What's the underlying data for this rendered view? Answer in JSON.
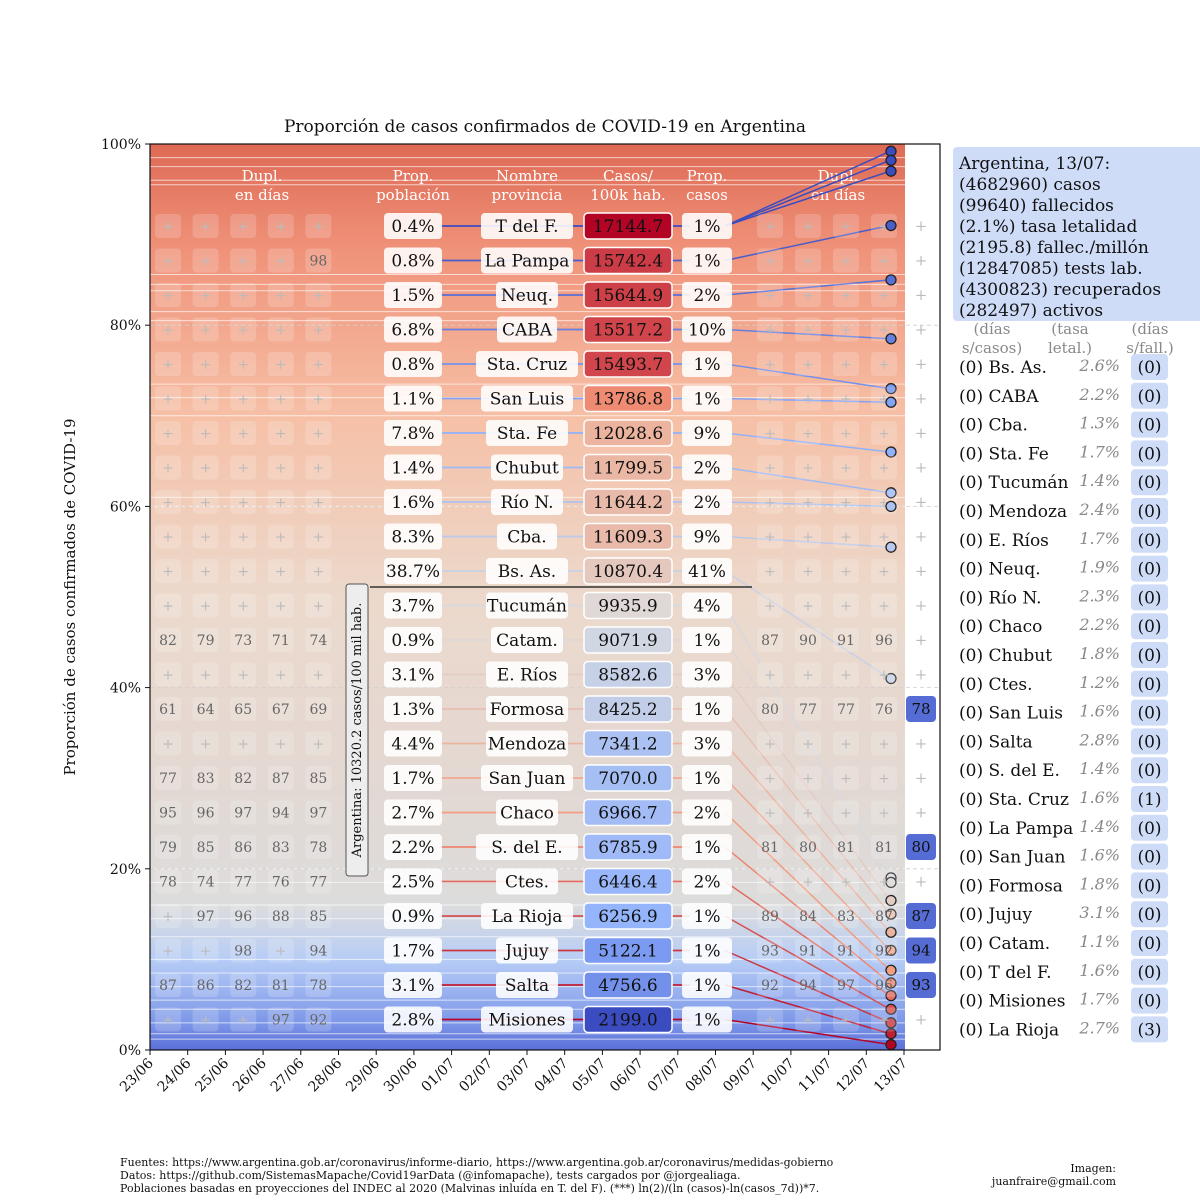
{
  "chart_data": {
    "type": "area",
    "title": "Proporción de casos confirmados de COVID-19 en Argentina",
    "ylabel": "Proporción de casos confirmados de COVID-19",
    "yticks": [
      "0%",
      "20%",
      "40%",
      "60%",
      "80%",
      "100%"
    ],
    "x": [
      "23/06",
      "24/06",
      "25/06",
      "26/06",
      "27/06",
      "28/06",
      "29/06",
      "30/06",
      "01/07",
      "02/07",
      "03/07",
      "04/07",
      "05/07",
      "06/07",
      "07/07",
      "08/07",
      "09/07",
      "10/07",
      "11/07",
      "12/07",
      "13/07"
    ],
    "headers": {
      "dupl_left": [
        "Dupl.",
        "en días"
      ],
      "prop_pop": [
        "Prop.",
        "población"
      ],
      "name": [
        "Nombre",
        "provincia"
      ],
      "cases": [
        "Casos/",
        "100k hab."
      ],
      "prop_cases": [
        "Prop.",
        "casos"
      ],
      "dupl_right": [
        "Dupl.",
        "en días"
      ]
    },
    "rows": [
      {
        "name": "T del F.",
        "pop": "0.4%",
        "cases": "17144.7",
        "prop": "1%",
        "left": [
          "+",
          "+",
          "+",
          "+",
          "+"
        ],
        "right": [
          "+",
          "+",
          "+",
          "+"
        ],
        "last": "+",
        "end": 0.97
      },
      {
        "name": "La Pampa",
        "pop": "0.8%",
        "cases": "15742.4",
        "prop": "1%",
        "left": [
          "+",
          "+",
          "+",
          "+",
          "98"
        ],
        "right": [
          "+",
          "+",
          "+",
          "+"
        ],
        "last": "+",
        "end": 0.91
      },
      {
        "name": "Neuq.",
        "pop": "1.5%",
        "cases": "15644.9",
        "prop": "2%",
        "left": [
          "+",
          "+",
          "+",
          "+",
          "+"
        ],
        "right": [
          "+",
          "+",
          "+",
          "+"
        ],
        "last": "+",
        "end": 0.85
      },
      {
        "name": "CABA",
        "pop": "6.8%",
        "cases": "15517.2",
        "prop": "10%",
        "left": [
          "+",
          "+",
          "+",
          "+",
          "+"
        ],
        "right": [
          "+",
          "+",
          "+",
          "+"
        ],
        "last": "+",
        "end": 0.785
      },
      {
        "name": "Sta. Cruz",
        "pop": "0.8%",
        "cases": "15493.7",
        "prop": "1%",
        "left": [
          "+",
          "+",
          "+",
          "+",
          "+"
        ],
        "right": [
          "+",
          "+",
          "+",
          "+"
        ],
        "last": "+",
        "end": 0.73
      },
      {
        "name": "San Luis",
        "pop": "1.1%",
        "cases": "13786.8",
        "prop": "1%",
        "left": [
          "+",
          "+",
          "+",
          "+",
          "+"
        ],
        "right": [
          "+",
          "+",
          "+",
          "+"
        ],
        "last": "+",
        "end": 0.715
      },
      {
        "name": "Sta. Fe",
        "pop": "7.8%",
        "cases": "12028.6",
        "prop": "9%",
        "left": [
          "+",
          "+",
          "+",
          "+",
          "+"
        ],
        "right": [
          "+",
          "+",
          "+",
          "+"
        ],
        "last": "+",
        "end": 0.66
      },
      {
        "name": "Chubut",
        "pop": "1.4%",
        "cases": "11799.5",
        "prop": "2%",
        "left": [
          "+",
          "+",
          "+",
          "+",
          "+"
        ],
        "right": [
          "+",
          "+",
          "+",
          "+"
        ],
        "last": "+",
        "end": 0.615
      },
      {
        "name": "Río N.",
        "pop": "1.6%",
        "cases": "11644.2",
        "prop": "2%",
        "left": [
          "+",
          "+",
          "+",
          "+",
          "+"
        ],
        "right": [
          "+",
          "+",
          "+",
          "+"
        ],
        "last": "+",
        "end": 0.6
      },
      {
        "name": "Cba.",
        "pop": "8.3%",
        "cases": "11609.3",
        "prop": "9%",
        "left": [
          "+",
          "+",
          "+",
          "+",
          "+"
        ],
        "right": [
          "+",
          "+",
          "+",
          "+"
        ],
        "last": "+",
        "end": 0.555
      },
      {
        "name": "Bs. As.",
        "pop": "38.7%",
        "cases": "10870.4",
        "prop": "41%",
        "left": [
          "+",
          "+",
          "+",
          "+",
          "+"
        ],
        "right": [
          "+",
          "+",
          "+",
          "+"
        ],
        "last": "+",
        "end": 0.41
      },
      {
        "name": "Tucumán",
        "pop": "3.7%",
        "cases": "9935.9",
        "prop": "4%",
        "left": [
          "+",
          "+",
          "+",
          "+",
          "+"
        ],
        "right": [
          "+",
          "+",
          "+",
          "+"
        ],
        "last": "+",
        "end": 0.19
      },
      {
        "name": "Catam.",
        "pop": "0.9%",
        "cases": "9071.9",
        "prop": "1%",
        "left": [
          "82",
          "79",
          "73",
          "71",
          "74"
        ],
        "right": [
          "87",
          "90",
          "91",
          "96"
        ],
        "last": "+",
        "end": 0.185
      },
      {
        "name": "E. Ríos",
        "pop": "3.1%",
        "cases": "8582.6",
        "prop": "3%",
        "left": [
          "+",
          "+",
          "+",
          "+",
          "+"
        ],
        "right": [
          "+",
          "+",
          "+",
          "+"
        ],
        "last": "+",
        "end": 0.165
      },
      {
        "name": "Formosa",
        "pop": "1.3%",
        "cases": "8425.2",
        "prop": "1%",
        "left": [
          "61",
          "64",
          "65",
          "67",
          "69"
        ],
        "right": [
          "80",
          "77",
          "77",
          "76"
        ],
        "last": "78",
        "end": 0.15
      },
      {
        "name": "Mendoza",
        "pop": "4.4%",
        "cases": "7341.2",
        "prop": "3%",
        "left": [
          "+",
          "+",
          "+",
          "+",
          "+"
        ],
        "right": [
          "+",
          "+",
          "+",
          "+"
        ],
        "last": "+",
        "end": 0.13
      },
      {
        "name": "San Juan",
        "pop": "1.7%",
        "cases": "7070.0",
        "prop": "1%",
        "left": [
          "77",
          "83",
          "82",
          "87",
          "85"
        ],
        "right": [
          "+",
          "+",
          "+",
          "+"
        ],
        "last": "+",
        "end": 0.11
      },
      {
        "name": "Chaco",
        "pop": "2.7%",
        "cases": "6966.7",
        "prop": "2%",
        "left": [
          "95",
          "96",
          "97",
          "94",
          "97"
        ],
        "right": [
          "+",
          "+",
          "+",
          "+"
        ],
        "last": "+",
        "end": 0.088
      },
      {
        "name": "S. del E.",
        "pop": "2.2%",
        "cases": "6785.9",
        "prop": "1%",
        "left": [
          "79",
          "85",
          "86",
          "83",
          "78"
        ],
        "right": [
          "81",
          "80",
          "81",
          "81"
        ],
        "last": "80",
        "end": 0.074
      },
      {
        "name": "Ctes.",
        "pop": "2.5%",
        "cases": "6446.4",
        "prop": "2%",
        "left": [
          "78",
          "74",
          "77",
          "76",
          "77"
        ],
        "right": [
          "+",
          "+",
          "+",
          "+"
        ],
        "last": "+",
        "end": 0.06
      },
      {
        "name": "La Rioja",
        "pop": "0.9%",
        "cases": "6256.9",
        "prop": "1%",
        "left": [
          "+",
          "97",
          "96",
          "88",
          "85"
        ],
        "right": [
          "89",
          "84",
          "83",
          "87"
        ],
        "last": "87",
        "end": 0.045
      },
      {
        "name": "Jujuy",
        "pop": "1.7%",
        "cases": "5122.1",
        "prop": "1%",
        "left": [
          "+",
          "+",
          "98",
          "+",
          "94"
        ],
        "right": [
          "93",
          "91",
          "91",
          "92"
        ],
        "last": "94",
        "end": 0.03
      },
      {
        "name": "Salta",
        "pop": "3.1%",
        "cases": "4756.6",
        "prop": "1%",
        "left": [
          "87",
          "86",
          "82",
          "81",
          "78"
        ],
        "right": [
          "92",
          "94",
          "97",
          "96"
        ],
        "last": "93",
        "end": 0.018
      },
      {
        "name": "Misiones",
        "pop": "2.8%",
        "cases": "2199.0",
        "prop": "1%",
        "left": [
          "+",
          "+",
          "+",
          "97",
          "92"
        ],
        "right": [
          "+",
          "+",
          "+",
          "+"
        ],
        "last": "+",
        "end": 0.006
      }
    ],
    "top_markers": [
      0.992,
      0.982
    ],
    "argentina_label": "Argentina: 10320.2 casos/100 mil hab.",
    "summary": [
      "Argentina, 13/07:",
      "(4682960) casos",
      "(99640) fallecidos",
      "(2.1%) tasa letalidad",
      "(2195.8) fallec./millón",
      "(12847085) tests lab.",
      "(4300823) recuperados",
      "(282497) activos"
    ],
    "right_headers": [
      {
        "l1": "(días",
        "l2": "s/casos)"
      },
      {
        "l1": "(tasa",
        "l2": "letal.)"
      },
      {
        "l1": "(días",
        "l2": "s/fall.)"
      }
    ],
    "right_list": [
      {
        "d": "(0)",
        "name": "Bs. As.",
        "rate": "2.6%",
        "f": "(0)"
      },
      {
        "d": "(0)",
        "name": "CABA",
        "rate": "2.2%",
        "f": "(0)"
      },
      {
        "d": "(0)",
        "name": "Cba.",
        "rate": "1.3%",
        "f": "(0)"
      },
      {
        "d": "(0)",
        "name": "Sta. Fe",
        "rate": "1.7%",
        "f": "(0)"
      },
      {
        "d": "(0)",
        "name": "Tucumán",
        "rate": "1.4%",
        "f": "(0)"
      },
      {
        "d": "(0)",
        "name": "Mendoza",
        "rate": "2.4%",
        "f": "(0)"
      },
      {
        "d": "(0)",
        "name": "E. Ríos",
        "rate": "1.7%",
        "f": "(0)"
      },
      {
        "d": "(0)",
        "name": "Neuq.",
        "rate": "1.9%",
        "f": "(0)"
      },
      {
        "d": "(0)",
        "name": "Río N.",
        "rate": "2.3%",
        "f": "(0)"
      },
      {
        "d": "(0)",
        "name": "Chaco",
        "rate": "2.2%",
        "f": "(0)"
      },
      {
        "d": "(0)",
        "name": "Chubut",
        "rate": "1.8%",
        "f": "(0)"
      },
      {
        "d": "(0)",
        "name": "Ctes.",
        "rate": "1.2%",
        "f": "(0)"
      },
      {
        "d": "(0)",
        "name": "San Luis",
        "rate": "1.6%",
        "f": "(0)"
      },
      {
        "d": "(0)",
        "name": "Salta",
        "rate": "2.8%",
        "f": "(0)"
      },
      {
        "d": "(0)",
        "name": "S. del E.",
        "rate": "1.4%",
        "f": "(0)"
      },
      {
        "d": "(0)",
        "name": "Sta. Cruz",
        "rate": "1.6%",
        "f": "(1)"
      },
      {
        "d": "(0)",
        "name": "La Pampa",
        "rate": "1.4%",
        "f": "(0)"
      },
      {
        "d": "(0)",
        "name": "San Juan",
        "rate": "1.6%",
        "f": "(0)"
      },
      {
        "d": "(0)",
        "name": "Formosa",
        "rate": "1.8%",
        "f": "(0)"
      },
      {
        "d": "(0)",
        "name": "Jujuy",
        "rate": "3.1%",
        "f": "(0)"
      },
      {
        "d": "(0)",
        "name": "Catam.",
        "rate": "1.1%",
        "f": "(0)"
      },
      {
        "d": "(0)",
        "name": "T del F.",
        "rate": "1.6%",
        "f": "(0)"
      },
      {
        "d": "(0)",
        "name": "Misiones",
        "rate": "1.7%",
        "f": "(0)"
      },
      {
        "d": "(0)",
        "name": "La Rioja",
        "rate": "2.7%",
        "f": "(3)"
      }
    ]
  },
  "footer": {
    "line1": "Fuentes: https://www.argentina.gob.ar/coronavirus/informe-diario, https://www.argentina.gob.ar/coronavirus/medidas-gobierno",
    "line2": "Datos: https://github.com/SistemasMapache/Covid19arData (@infomapache), tests cargados por @jorgealiaga.",
    "line3": "Poblaciones basadas en proyecciones del INDEC al 2020 (Malvinas inluída en T. del F). (***) ln(2)/(ln (casos)-ln(casos_7d))*7.",
    "credit1": "Imagen:",
    "credit2": "juanfraire@gmail.com"
  }
}
